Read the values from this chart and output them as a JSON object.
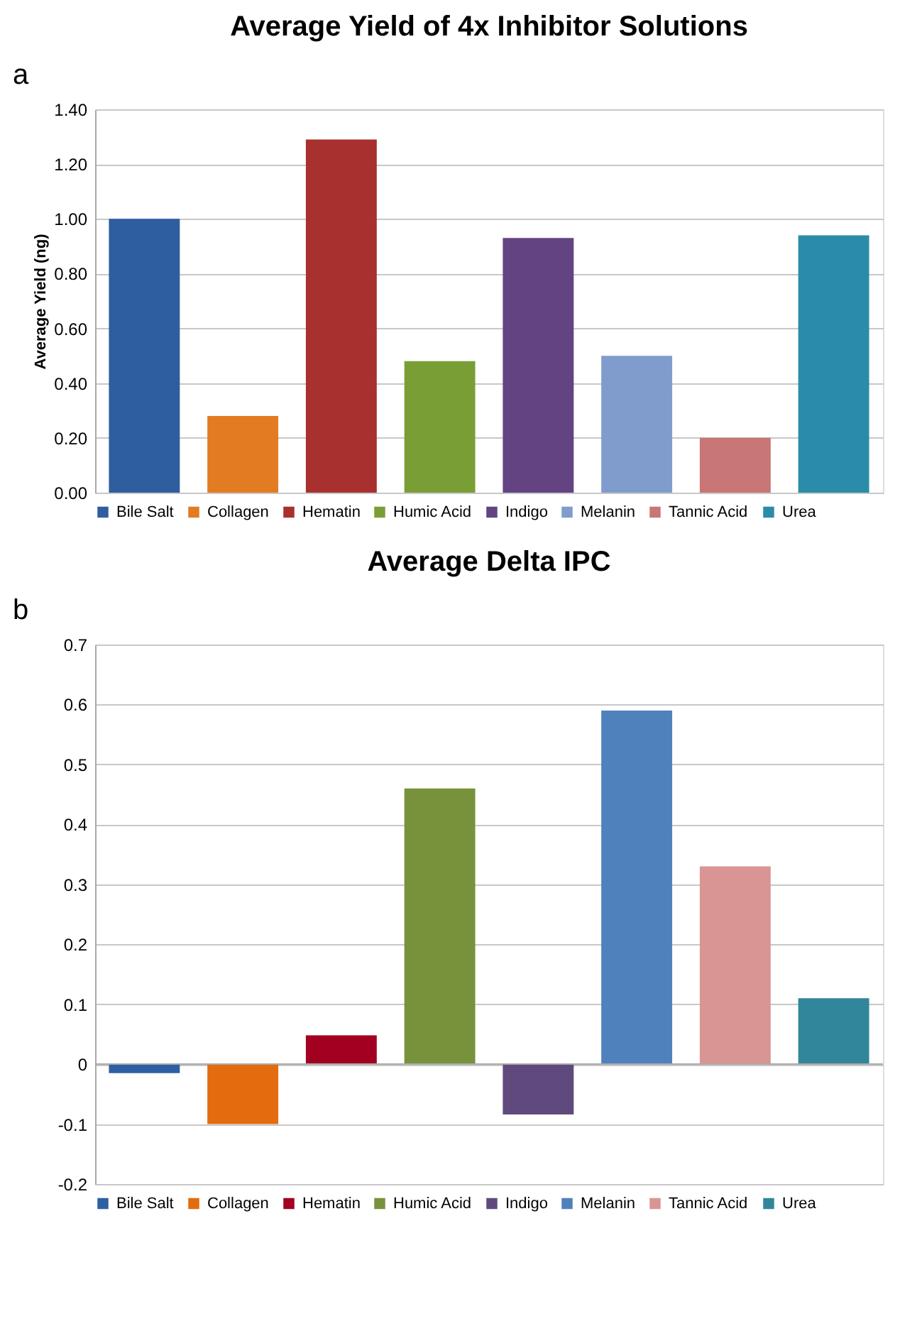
{
  "chart_data": [
    {
      "type": "bar",
      "title": "Average Yield of 4x Inhibitor Solutions",
      "ylabel": "Average Yield (ng)",
      "annotations": [
        "a"
      ],
      "categories": [
        null,
        null,
        null,
        null,
        null,
        null,
        null,
        null
      ],
      "series": [
        {
          "name": "Bile Salt",
          "color": "#2e5e9e",
          "values": [
            1.0,
            null,
            null,
            null,
            null,
            null,
            null,
            null
          ]
        },
        {
          "name": "Collagen",
          "color": "#e37b22",
          "values": [
            null,
            0.28,
            null,
            null,
            null,
            null,
            null,
            null
          ]
        },
        {
          "name": "Hematin",
          "color": "#a8302f",
          "values": [
            null,
            null,
            1.29,
            null,
            null,
            null,
            null,
            null
          ]
        },
        {
          "name": "Humic Acid",
          "color": "#7a9e36",
          "values": [
            null,
            null,
            null,
            0.48,
            null,
            null,
            null,
            null
          ]
        },
        {
          "name": "Indigo",
          "color": "#634382",
          "values": [
            null,
            null,
            null,
            null,
            0.93,
            null,
            null,
            null
          ]
        },
        {
          "name": "Melanin",
          "color": "#7f9ccc",
          "values": [
            null,
            null,
            null,
            null,
            null,
            0.5,
            null,
            null
          ]
        },
        {
          "name": "Tannic Acid",
          "color": "#c87676",
          "values": [
            null,
            null,
            null,
            null,
            null,
            null,
            0.2,
            null
          ]
        },
        {
          "name": "Urea",
          "color": "#2a8ca8",
          "values": [
            null,
            null,
            null,
            null,
            null,
            null,
            null,
            0.94
          ]
        }
      ],
      "ylim": [
        0,
        1.4
      ],
      "yticks": [
        {
          "value": 0,
          "label": "0.00"
        },
        {
          "value": 0.2,
          "label": "0.20"
        },
        {
          "value": 0.4,
          "label": "0.40"
        },
        {
          "value": 0.6,
          "label": "0.60"
        },
        {
          "value": 0.8,
          "label": "0.80"
        },
        {
          "value": 1.0,
          "label": "1.00"
        },
        {
          "value": 1.2,
          "label": "1.20"
        },
        {
          "value": 1.4,
          "label": "1.40"
        }
      ],
      "grid": "y",
      "legend": "bottom",
      "tick_labels": "y"
    },
    {
      "type": "bar",
      "title": "Average Delta IPC",
      "annotations": [
        "b"
      ],
      "categories": [
        null,
        null,
        null,
        null,
        null,
        null,
        null,
        null
      ],
      "series": [
        {
          "name": "Bile Salt",
          "color": "#2e5fa3",
          "values": [
            -0.015,
            null,
            null,
            null,
            null,
            null,
            null,
            null
          ]
        },
        {
          "name": "Collagen",
          "color": "#e36c0e",
          "values": [
            null,
            -0.1,
            null,
            null,
            null,
            null,
            null,
            null
          ]
        },
        {
          "name": "Hematin",
          "color": "#a30021",
          "values": [
            null,
            null,
            0.048,
            null,
            null,
            null,
            null,
            null
          ]
        },
        {
          "name": "Humic Acid",
          "color": "#77923b",
          "values": [
            null,
            null,
            null,
            0.46,
            null,
            null,
            null,
            null
          ]
        },
        {
          "name": "Indigo",
          "color": "#604a7d",
          "values": [
            null,
            null,
            null,
            null,
            -0.084,
            null,
            null,
            null
          ]
        },
        {
          "name": "Melanin",
          "color": "#4f81bd",
          "values": [
            null,
            null,
            null,
            null,
            null,
            0.59,
            null,
            null
          ]
        },
        {
          "name": "Tannic Acid",
          "color": "#d99594",
          "values": [
            null,
            null,
            null,
            null,
            null,
            null,
            0.33,
            null
          ]
        },
        {
          "name": "Urea",
          "color": "#31869b",
          "values": [
            null,
            null,
            null,
            null,
            null,
            null,
            null,
            0.11
          ]
        }
      ],
      "ylim": [
        -0.2,
        0.7
      ],
      "yticks": [
        -0.2,
        -0.1,
        {
          "value": 0,
          "label": "0"
        },
        0.1,
        0.2,
        0.3,
        0.4,
        0.5,
        0.6,
        0.7
      ],
      "grid": "y",
      "legend": "bottom",
      "tick_labels": "y"
    }
  ]
}
